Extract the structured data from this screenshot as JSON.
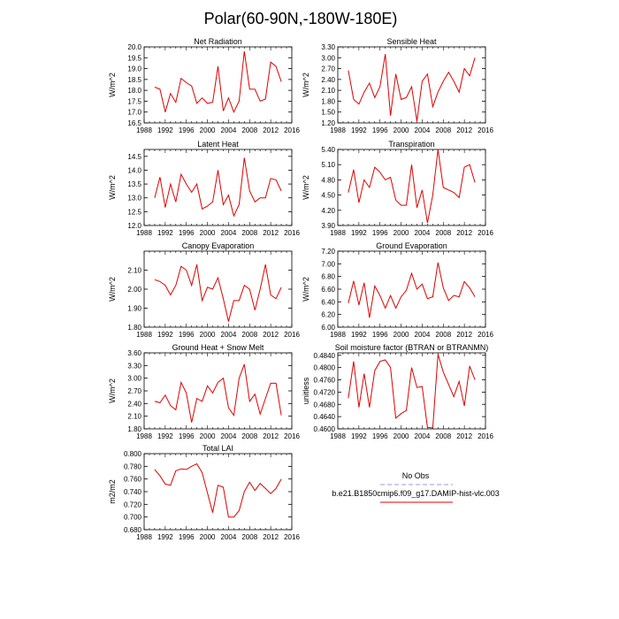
{
  "title": "Polar(60-90N,-180W-180E)",
  "legend": {
    "entries": [
      {
        "label": "No Obs",
        "color": "#9999dd",
        "dashed": true
      },
      {
        "label": "b.e21.B1850cmip6.f09_g17.DAMIP-hist-vlc.003",
        "color": "#e00000",
        "dashed": false
      }
    ]
  },
  "chart_data": [
    {
      "type": "line",
      "title": "Net Radiation",
      "ylabel": "W/m^2",
      "xlim": [
        1988,
        2016
      ],
      "xticks": [
        "1988",
        "1992",
        "1996",
        "2000",
        "2004",
        "2008",
        "2012",
        "2016"
      ],
      "ylim": [
        16.5,
        20.0
      ],
      "yticks": [
        "16.5",
        "17.0",
        "17.5",
        "18.0",
        "18.5",
        "19.0",
        "19.5",
        "20.0"
      ],
      "series": [
        {
          "name": "b.e21.B1850cmip6.f09_g17.DAMIP-hist-vlc.003",
          "color": "#e00000",
          "x": [
            1990,
            1991,
            1992,
            1993,
            1994,
            1995,
            1996,
            1997,
            1998,
            1999,
            2000,
            2001,
            2002,
            2003,
            2004,
            2005,
            2006,
            2007,
            2008,
            2009,
            2010,
            2011,
            2012,
            2013,
            2014
          ],
          "y": [
            18.15,
            18.05,
            17.0,
            17.85,
            17.45,
            18.55,
            18.35,
            18.2,
            17.4,
            17.65,
            17.4,
            17.45,
            19.1,
            17.05,
            17.65,
            17.0,
            17.5,
            19.8,
            18.05,
            18.05,
            17.5,
            17.6,
            19.3,
            19.1,
            18.4
          ]
        }
      ]
    },
    {
      "type": "line",
      "title": "Sensible Heat",
      "ylabel": "W/m^2",
      "xlim": [
        1988,
        2016
      ],
      "xticks": [
        "1988",
        "1992",
        "1996",
        "2000",
        "2004",
        "2008",
        "2012",
        "2016"
      ],
      "ylim": [
        1.2,
        3.3
      ],
      "yticks": [
        "1.20",
        "1.50",
        "1.80",
        "2.10",
        "2.40",
        "2.70",
        "3.00",
        "3.30"
      ],
      "series": [
        {
          "name": "b.e21.B1850cmip6.f09_g17.DAMIP-hist-vlc.003",
          "color": "#e00000",
          "x": [
            1990,
            1991,
            1992,
            1993,
            1994,
            1995,
            1996,
            1997,
            1998,
            1999,
            2000,
            2001,
            2002,
            2003,
            2004,
            2005,
            2006,
            2007,
            2008,
            2009,
            2010,
            2011,
            2012,
            2013,
            2014
          ],
          "y": [
            2.65,
            1.85,
            1.72,
            2.05,
            2.3,
            1.9,
            2.2,
            3.1,
            1.4,
            2.55,
            1.85,
            1.9,
            2.2,
            1.25,
            2.35,
            2.55,
            1.65,
            2.05,
            2.35,
            2.6,
            2.35,
            2.05,
            2.7,
            2.5,
            3.0
          ]
        }
      ]
    },
    {
      "type": "line",
      "title": "Latent Heat",
      "ylabel": "W/m^2",
      "xlim": [
        1988,
        2016
      ],
      "xticks": [
        "1988",
        "1992",
        "1996",
        "2000",
        "2004",
        "2008",
        "2012",
        "2016"
      ],
      "ylim": [
        12.0,
        14.75
      ],
      "yticks": [
        "12.0",
        "12.5",
        "13.0",
        "13.5",
        "14.0",
        "14.5"
      ],
      "series": [
        {
          "name": "b.e21.B1850cmip6.f09_g17.DAMIP-hist-vlc.003",
          "color": "#e00000",
          "x": [
            1990,
            1991,
            1992,
            1993,
            1994,
            1995,
            1996,
            1997,
            1998,
            1999,
            2000,
            2001,
            2002,
            2003,
            2004,
            2005,
            2006,
            2007,
            2008,
            2009,
            2010,
            2011,
            2012,
            2013,
            2014
          ],
          "y": [
            13.0,
            13.75,
            12.65,
            13.5,
            12.85,
            13.85,
            13.5,
            13.2,
            13.5,
            12.6,
            12.7,
            12.85,
            14.0,
            12.75,
            13.1,
            12.35,
            12.75,
            14.45,
            13.25,
            12.85,
            13.0,
            13.0,
            13.7,
            13.65,
            13.25
          ]
        }
      ]
    },
    {
      "type": "line",
      "title": "Transpiration",
      "ylabel": "W/m^2",
      "xlim": [
        1988,
        2016
      ],
      "xticks": [
        "1988",
        "1992",
        "1996",
        "2000",
        "2004",
        "2008",
        "2012",
        "2016"
      ],
      "ylim": [
        3.9,
        5.4
      ],
      "yticks": [
        "3.90",
        "4.20",
        "4.50",
        "4.80",
        "5.10",
        "5.40"
      ],
      "series": [
        {
          "name": "b.e21.B1850cmip6.f09_g17.DAMIP-hist-vlc.003",
          "color": "#e00000",
          "x": [
            1990,
            1991,
            1992,
            1993,
            1994,
            1995,
            1996,
            1997,
            1998,
            1999,
            2000,
            2001,
            2002,
            2003,
            2004,
            2005,
            2006,
            2007,
            2008,
            2009,
            2010,
            2011,
            2012,
            2013,
            2014
          ],
          "y": [
            4.55,
            5.0,
            4.35,
            4.8,
            4.65,
            5.05,
            4.95,
            4.8,
            4.85,
            4.4,
            4.3,
            4.3,
            5.1,
            4.25,
            4.6,
            3.95,
            4.5,
            5.4,
            4.65,
            4.6,
            4.55,
            4.45,
            5.05,
            5.1,
            4.75
          ]
        }
      ]
    },
    {
      "type": "line",
      "title": "Canopy Evaporation",
      "ylabel": "W/m^2",
      "xlim": [
        1988,
        2016
      ],
      "xticks": [
        "1988",
        "1992",
        "1996",
        "2000",
        "2004",
        "2008",
        "2012",
        "2016"
      ],
      "ylim": [
        1.8,
        2.2
      ],
      "yticks": [
        "1.80",
        "1.90",
        "2.00",
        "2.10"
      ],
      "series": [
        {
          "name": "b.e21.B1850cmip6.f09_g17.DAMIP-hist-vlc.003",
          "color": "#e00000",
          "x": [
            1990,
            1991,
            1992,
            1993,
            1994,
            1995,
            1996,
            1997,
            1998,
            1999,
            2000,
            2001,
            2002,
            2003,
            2004,
            2005,
            2006,
            2007,
            2008,
            2009,
            2010,
            2011,
            2012,
            2013,
            2014
          ],
          "y": [
            2.05,
            2.04,
            2.02,
            1.97,
            2.02,
            2.12,
            2.1,
            2.02,
            2.13,
            1.94,
            2.01,
            2.0,
            2.06,
            1.95,
            1.83,
            1.94,
            1.94,
            2.02,
            2.0,
            1.89,
            2.0,
            2.13,
            1.97,
            1.95,
            2.01
          ]
        }
      ]
    },
    {
      "type": "line",
      "title": "Ground Evaporation",
      "ylabel": "W/m^2",
      "xlim": [
        1988,
        2016
      ],
      "xticks": [
        "1988",
        "1992",
        "1996",
        "2000",
        "2004",
        "2008",
        "2012",
        "2016"
      ],
      "ylim": [
        6.0,
        7.2
      ],
      "yticks": [
        "6.00",
        "6.20",
        "6.40",
        "6.60",
        "6.80",
        "7.00",
        "7.20"
      ],
      "series": [
        {
          "name": "b.e21.B1850cmip6.f09_g17.DAMIP-hist-vlc.003",
          "color": "#e00000",
          "x": [
            1990,
            1991,
            1992,
            1993,
            1994,
            1995,
            1996,
            1997,
            1998,
            1999,
            2000,
            2001,
            2002,
            2003,
            2004,
            2005,
            2006,
            2007,
            2008,
            2009,
            2010,
            2011,
            2012,
            2013,
            2014
          ],
          "y": [
            6.38,
            6.73,
            6.35,
            6.7,
            6.15,
            6.65,
            6.5,
            6.3,
            6.5,
            6.3,
            6.48,
            6.58,
            6.85,
            6.6,
            6.68,
            6.45,
            6.48,
            7.02,
            6.62,
            6.42,
            6.5,
            6.48,
            6.72,
            6.62,
            6.48
          ]
        }
      ]
    },
    {
      "type": "line",
      "title": "Ground Heat + Snow Melt",
      "ylabel": "W/m^2",
      "xlim": [
        1988,
        2016
      ],
      "xticks": [
        "1988",
        "1992",
        "1996",
        "2000",
        "2004",
        "2008",
        "2012",
        "2016"
      ],
      "ylim": [
        1.8,
        3.6
      ],
      "yticks": [
        "1.80",
        "2.10",
        "2.40",
        "2.70",
        "3.00",
        "3.30",
        "3.60"
      ],
      "series": [
        {
          "name": "b.e21.B1850cmip6.f09_g17.DAMIP-hist-vlc.003",
          "color": "#e00000",
          "x": [
            1990,
            1991,
            1992,
            1993,
            1994,
            1995,
            1996,
            1997,
            1998,
            1999,
            2000,
            2001,
            2002,
            2003,
            2004,
            2005,
            2006,
            2007,
            2008,
            2009,
            2010,
            2011,
            2012,
            2013,
            2014
          ],
          "y": [
            2.45,
            2.42,
            2.6,
            2.35,
            2.25,
            2.9,
            2.65,
            1.95,
            2.52,
            2.45,
            2.82,
            2.65,
            2.9,
            3.0,
            2.3,
            2.12,
            3.0,
            3.33,
            2.45,
            2.62,
            2.15,
            2.52,
            2.88,
            2.88,
            2.12
          ]
        }
      ]
    },
    {
      "type": "line",
      "title": "Soil moisture factor (BTRAN or BTRANMN)",
      "ylabel": "unitless",
      "xlim": [
        1988,
        2016
      ],
      "xticks": [
        "1988",
        "1992",
        "1996",
        "2000",
        "2004",
        "2008",
        "2012",
        "2016"
      ],
      "ylim": [
        0.46,
        0.4848
      ],
      "yticks": [
        "0.4600",
        "0.4640",
        "0.4680",
        "0.4720",
        "0.4760",
        "0.4800",
        "0.4840"
      ],
      "series": [
        {
          "name": "b.e21.B1850cmip6.f09_g17.DAMIP-hist-vlc.003",
          "color": "#e00000",
          "x": [
            1990,
            1991,
            1992,
            1993,
            1994,
            1995,
            1996,
            1997,
            1998,
            1999,
            2000,
            2001,
            2002,
            2003,
            2004,
            2005,
            2006,
            2007,
            2008,
            2009,
            2010,
            2011,
            2012,
            2013,
            2014
          ],
          "y": [
            0.47,
            0.482,
            0.467,
            0.478,
            0.467,
            0.479,
            0.482,
            0.4825,
            0.48,
            0.4635,
            0.465,
            0.466,
            0.48,
            0.4735,
            0.4738,
            0.4605,
            0.4603,
            0.4843,
            0.4785,
            0.4745,
            0.4705,
            0.4755,
            0.4675,
            0.4805,
            0.476
          ]
        }
      ]
    },
    {
      "type": "line",
      "title": "Total LAI",
      "ylabel": "m2/m2",
      "xlim": [
        1988,
        2016
      ],
      "xticks": [
        "1988",
        "1992",
        "1996",
        "2000",
        "2004",
        "2008",
        "2012",
        "2016"
      ],
      "ylim": [
        0.68,
        0.8
      ],
      "yticks": [
        "0.680",
        "0.700",
        "0.720",
        "0.740",
        "0.760",
        "0.780",
        "0.800"
      ],
      "series": [
        {
          "name": "b.e21.B1850cmip6.f09_g17.DAMIP-hist-vlc.003",
          "color": "#e00000",
          "x": [
            1990,
            1991,
            1992,
            1993,
            1994,
            1995,
            1996,
            1997,
            1998,
            1999,
            2000,
            2001,
            2002,
            2003,
            2004,
            2005,
            2006,
            2007,
            2008,
            2009,
            2010,
            2011,
            2012,
            2013,
            2014
          ],
          "y": [
            0.775,
            0.765,
            0.752,
            0.75,
            0.773,
            0.776,
            0.775,
            0.78,
            0.784,
            0.77,
            0.738,
            0.707,
            0.75,
            0.747,
            0.7,
            0.7,
            0.71,
            0.74,
            0.755,
            0.742,
            0.753,
            0.745,
            0.737,
            0.745,
            0.76
          ]
        }
      ]
    }
  ]
}
